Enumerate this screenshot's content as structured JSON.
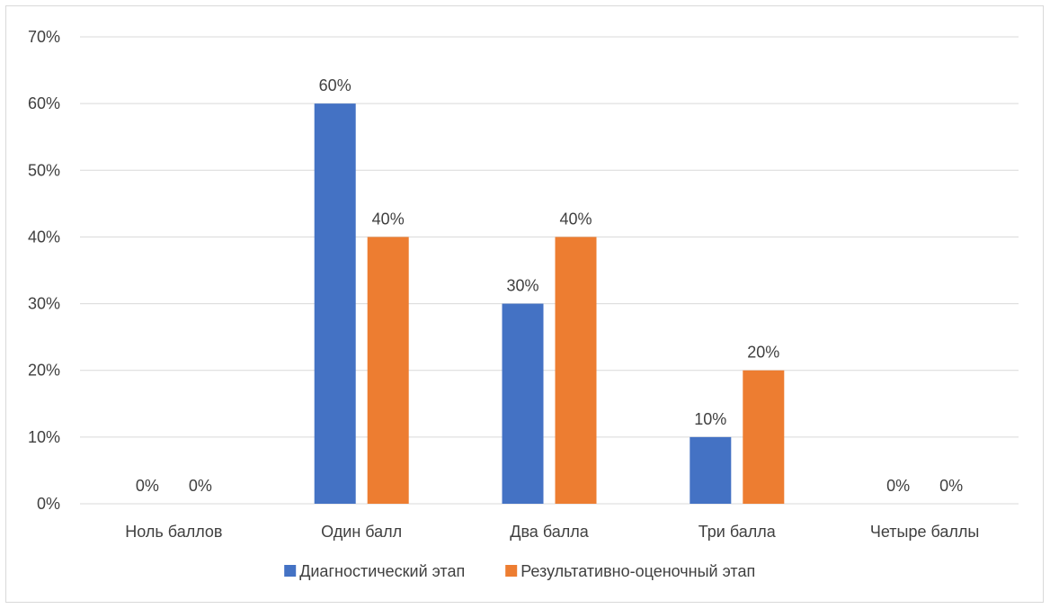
{
  "chart_data": {
    "type": "bar",
    "categories": [
      "Ноль баллов",
      "Один балл",
      "Два балла",
      "Три балла",
      "Четыре баллы"
    ],
    "series": [
      {
        "name": "Диагностический этап",
        "values": [
          0,
          60,
          30,
          10,
          0
        ],
        "color": "#4472C4"
      },
      {
        "name": "Результативно-оценочный этап",
        "values": [
          0,
          40,
          40,
          20,
          0
        ],
        "color": "#ED7D31"
      }
    ],
    "ylim": [
      0,
      70
    ],
    "yticks": [
      0,
      10,
      20,
      30,
      40,
      50,
      60,
      70
    ],
    "value_suffix": "%",
    "data_labels": true,
    "grid": true,
    "legend_position": "bottom"
  }
}
